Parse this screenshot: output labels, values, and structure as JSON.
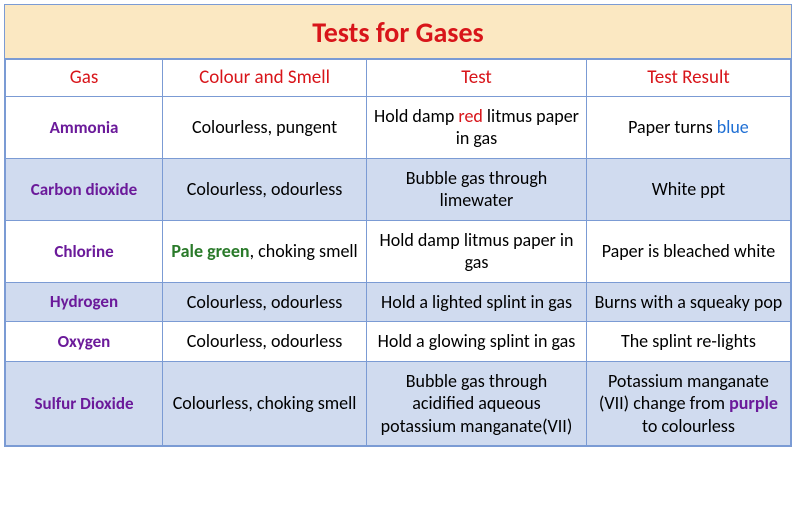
{
  "title": "Tests for Gases",
  "columns": [
    "Gas",
    "Colour and Smell",
    "Test",
    "Test Result"
  ],
  "colors": {
    "title_bg": "#fbe8c2",
    "title_text": "#d8151a",
    "header_text": "#d8151a",
    "border": "#7b9bd4",
    "row_even_bg": "#d0dbef",
    "row_odd_bg": "#ffffff",
    "gas_text": "#6b1a9a",
    "seg_red": "#d8151a",
    "seg_blue": "#1f6fd4",
    "seg_green": "#2a7a2a",
    "seg_purple": "#6b1a9a"
  },
  "font_sizes": {
    "title": 28,
    "header": 19,
    "cell": 18,
    "gas": 17
  },
  "column_widths_pct": [
    20,
    26,
    28,
    26
  ],
  "rows": [
    {
      "gas": "Ammonia",
      "colour_smell": [
        {
          "t": "Colourless, pungent"
        }
      ],
      "test": [
        {
          "t": "Hold damp "
        },
        {
          "t": "red",
          "c": "red"
        },
        {
          "t": " litmus paper in gas"
        }
      ],
      "result": [
        {
          "t": "Paper turns "
        },
        {
          "t": "blue",
          "c": "blue"
        }
      ]
    },
    {
      "gas": "Carbon dioxide",
      "colour_smell": [
        {
          "t": "Colourless, odourless"
        }
      ],
      "test": [
        {
          "t": "Bubble gas through limewater"
        }
      ],
      "result": [
        {
          "t": "White ppt"
        }
      ]
    },
    {
      "gas": "Chlorine",
      "colour_smell": [
        {
          "t": "Pale green",
          "c": "green"
        },
        {
          "t": ", choking smell"
        }
      ],
      "test": [
        {
          "t": "Hold damp litmus paper in gas"
        }
      ],
      "result": [
        {
          "t": "Paper is bleached white"
        }
      ]
    },
    {
      "gas": "Hydrogen",
      "colour_smell": [
        {
          "t": "Colourless, odourless"
        }
      ],
      "test": [
        {
          "t": "Hold a lighted splint in gas"
        }
      ],
      "result": [
        {
          "t": "Burns with a squeaky pop"
        }
      ]
    },
    {
      "gas": "Oxygen",
      "colour_smell": [
        {
          "t": "Colourless, odourless"
        }
      ],
      "test": [
        {
          "t": "Hold a glowing splint in gas"
        }
      ],
      "result": [
        {
          "t": "The splint re-lights"
        }
      ]
    },
    {
      "gas": "Sulfur Dioxide",
      "colour_smell": [
        {
          "t": "Colourless, choking smell"
        }
      ],
      "test": [
        {
          "t": "Bubble gas through acidified aqueous potassium manganate(VII)"
        }
      ],
      "result": [
        {
          "t": "Potassium manganate (VII) change from "
        },
        {
          "t": "purple",
          "c": "purple"
        },
        {
          "t": " to colourless"
        }
      ]
    }
  ]
}
